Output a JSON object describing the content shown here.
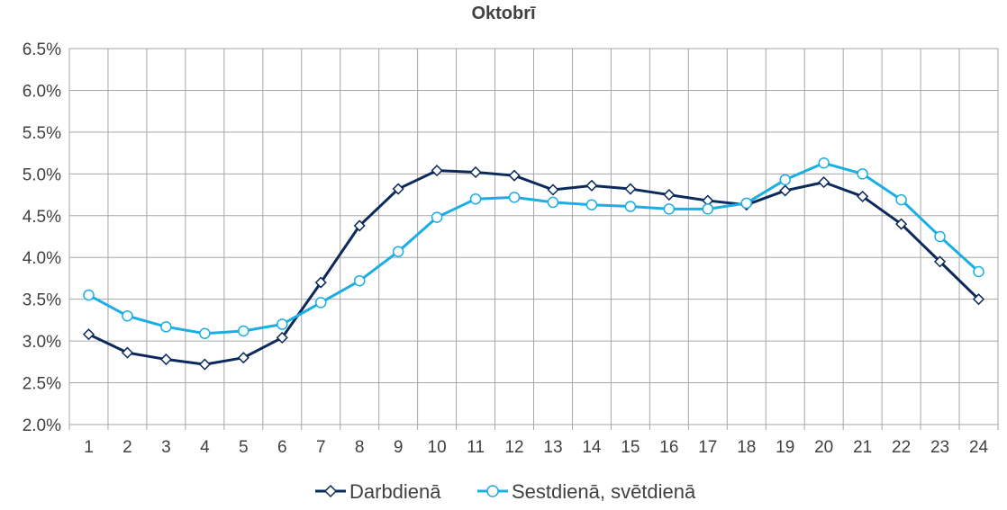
{
  "chart_data": {
    "type": "line",
    "title": "Oktobrī",
    "xlabel": "",
    "ylabel": "",
    "categories": [
      "1",
      "2",
      "3",
      "4",
      "5",
      "6",
      "7",
      "8",
      "9",
      "10",
      "11",
      "12",
      "13",
      "14",
      "15",
      "16",
      "17",
      "18",
      "19",
      "20",
      "21",
      "22",
      "23",
      "24"
    ],
    "ylim": [
      0.02,
      0.065
    ],
    "ytick_step": 0.005,
    "ytick_labels": [
      "2.0%",
      "2.5%",
      "3.0%",
      "3.5%",
      "4.0%",
      "4.5%",
      "5.0%",
      "5.5%",
      "6.0%",
      "6.5%"
    ],
    "grid": true,
    "legend_position": "bottom",
    "series": [
      {
        "name": "Darbdienā",
        "color": "#0b2a5b",
        "marker": "diamond",
        "values": [
          0.0308,
          0.0286,
          0.0278,
          0.0272,
          0.028,
          0.0304,
          0.037,
          0.0438,
          0.0482,
          0.0504,
          0.0502,
          0.0498,
          0.0481,
          0.0486,
          0.0482,
          0.0475,
          0.0468,
          0.0463,
          0.048,
          0.049,
          0.0473,
          0.044,
          0.0395,
          0.035
        ]
      },
      {
        "name": "Sestdienā, svētdienā",
        "color": "#1aaee5",
        "marker": "circle",
        "values": [
          0.0355,
          0.033,
          0.0317,
          0.0309,
          0.0312,
          0.032,
          0.0346,
          0.0372,
          0.0407,
          0.0448,
          0.047,
          0.0472,
          0.0466,
          0.0463,
          0.0461,
          0.0458,
          0.0458,
          0.0465,
          0.0493,
          0.0513,
          0.05,
          0.0469,
          0.0425,
          0.0383
        ]
      }
    ]
  }
}
